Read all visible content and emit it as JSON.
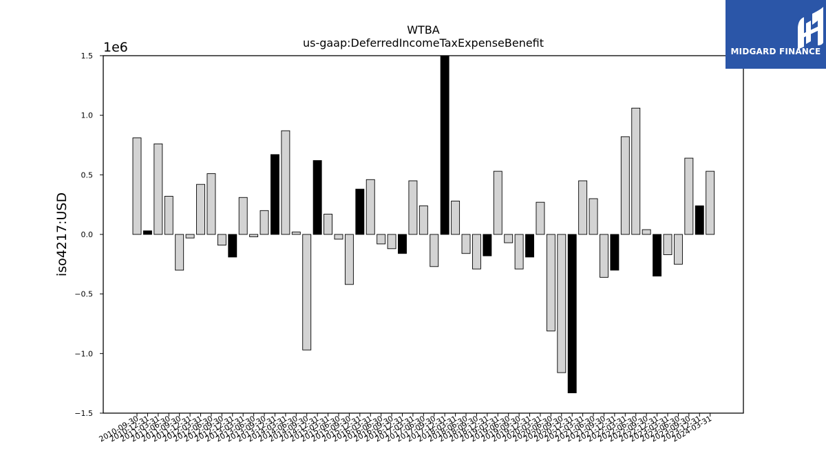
{
  "chart_data": {
    "type": "bar",
    "title": "WTBA",
    "subtitle": "us-gaap:DeferredIncomeTaxExpenseBenefit",
    "ylabel": "iso4217:USD",
    "xlabel": "",
    "y_scale_label": "1e6",
    "ylim": [
      -1.5,
      1.5
    ],
    "yticks": [
      -1.5,
      -1.0,
      -0.5,
      0.0,
      0.5,
      1.0,
      1.5
    ],
    "ytick_labels": [
      "−1.5",
      "−1.0",
      "−0.5",
      "0.0",
      "0.5",
      "1.0",
      "1.5"
    ],
    "grid": false,
    "categories": [
      "2010-09-30",
      "2010-12-31",
      "2011-03-31",
      "2011-06-30",
      "2011-09-30",
      "2011-12-31",
      "2012-03-31",
      "2012-06-30",
      "2012-09-30",
      "2012-12-31",
      "2013-03-31",
      "2013-06-30",
      "2013-09-30",
      "2013-12-31",
      "2014-03-31",
      "2014-06-30",
      "2014-09-30",
      "2014-12-31",
      "2015-03-31",
      "2015-06-30",
      "2015-09-30",
      "2015-12-31",
      "2016-03-31",
      "2016-06-30",
      "2016-09-30",
      "2016-12-31",
      "2017-03-31",
      "2017-06-30",
      "2017-09-30",
      "2017-12-31",
      "2018-03-31",
      "2018-06-30",
      "2018-09-30",
      "2018-12-31",
      "2019-03-31",
      "2019-06-30",
      "2019-09-30",
      "2019-12-31",
      "2020-03-31",
      "2020-06-30",
      "2020-09-30",
      "2020-12-31",
      "2021-03-31",
      "2021-06-30",
      "2021-09-30",
      "2021-12-31",
      "2022-03-31",
      "2022-06-30",
      "2022-09-30",
      "2022-12-31",
      "2023-03-31",
      "2023-06-30",
      "2023-09-30",
      "2023-12-31",
      "2024-03-31"
    ],
    "values": [
      0.81,
      0.03,
      0.76,
      0.32,
      -0.3,
      -0.03,
      0.42,
      0.51,
      -0.09,
      -0.19,
      0.31,
      -0.02,
      0.2,
      0.67,
      0.87,
      0.02,
      -0.97,
      0.62,
      0.17,
      -0.04,
      -0.42,
      0.38,
      0.46,
      -0.08,
      -0.12,
      -0.16,
      0.45,
      0.24,
      -0.27,
      1.5,
      0.28,
      -0.16,
      -0.29,
      -0.18,
      0.53,
      -0.07,
      -0.29,
      -0.19,
      0.27,
      -0.81,
      -1.16,
      -1.33,
      0.45,
      0.3,
      -0.36,
      -0.3,
      0.82,
      1.06,
      0.04,
      -0.35,
      -0.17,
      -0.25,
      0.64,
      0.24,
      0.53
    ],
    "highlight_indices": [
      1,
      9,
      13,
      17,
      21,
      25,
      29,
      33,
      37,
      41,
      45,
      49,
      53
    ],
    "colors": {
      "bar_fill": "#d3d3d3",
      "highlight_fill": "#000000",
      "bar_edge": "#000000"
    }
  },
  "logo": {
    "text": "MIDGARD FINANCE",
    "color": "#2b56a8"
  }
}
